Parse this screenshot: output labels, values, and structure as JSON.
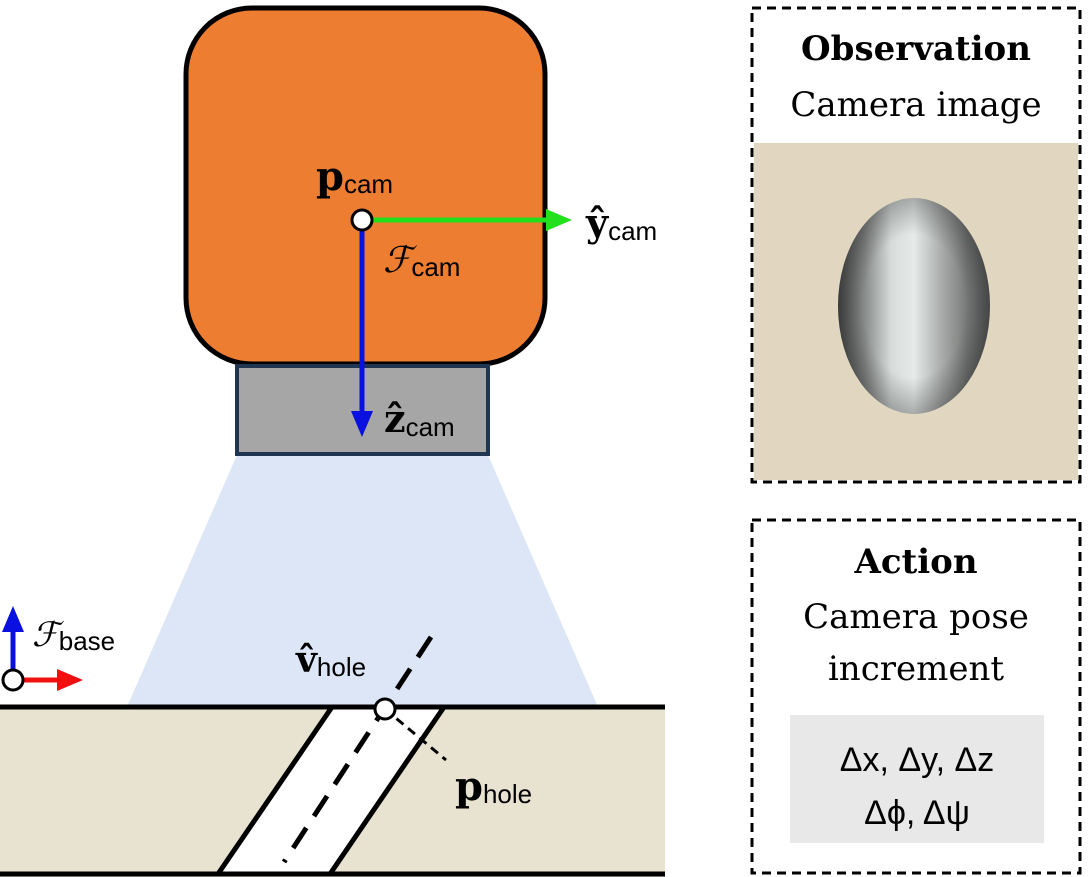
{
  "camera": {
    "position_symbol": "p",
    "position_sub": "cam",
    "frame_symbol": "ℱ",
    "frame_sub": "cam",
    "y_axis_symbol": "ŷ",
    "y_axis_sub": "cam",
    "z_axis_symbol": "ẑ",
    "z_axis_sub": "cam"
  },
  "base": {
    "frame_symbol": "ℱ",
    "frame_sub": "base"
  },
  "hole": {
    "direction_symbol": "v̂",
    "direction_sub": "hole",
    "position_symbol": "p",
    "position_sub": "hole"
  },
  "observation_panel": {
    "title": "Observation",
    "subtitle": "Camera image"
  },
  "action_panel": {
    "title": "Action",
    "line1": "Camera pose",
    "line2": "increment",
    "values_line1": "Δx, Δy, Δz",
    "values_line2": "Δϕ, Δψ"
  },
  "colors": {
    "camera_body": "#ED7D31",
    "lens": "#A6A6A6",
    "lens_border": "#1F3550",
    "fov_cone": "#DCE6F7",
    "surface": "#E8E3D1",
    "y_axis": "#22E01B",
    "z_axis": "#0A10E0",
    "x_axis_base": "#F01010",
    "camera_image_bg": "#E1D6BF",
    "action_box": "#E8E8E8"
  }
}
